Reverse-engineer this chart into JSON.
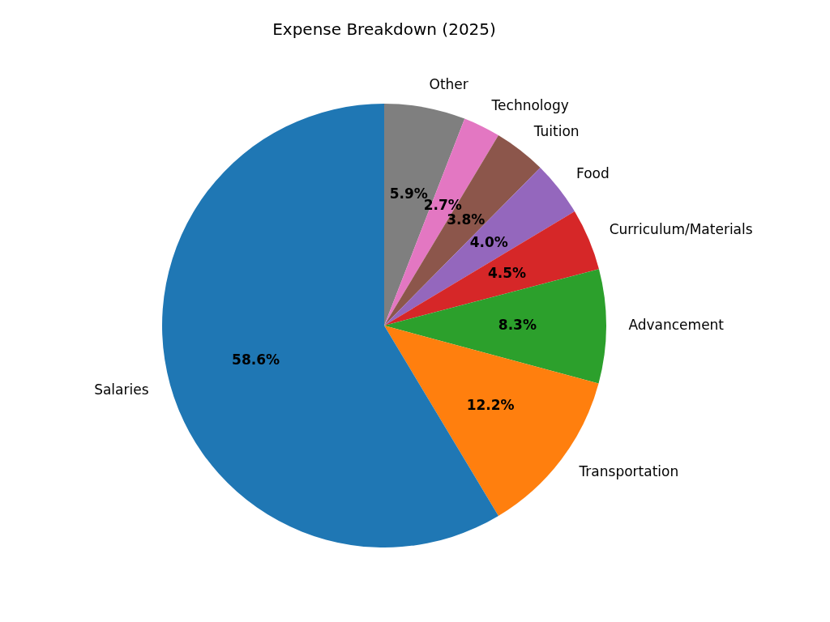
{
  "chart_data": {
    "type": "pie",
    "title": "Expense Breakdown (2025)",
    "categories": [
      "Other",
      "Technology",
      "Tuition",
      "Food",
      "Curriculum/Materials",
      "Advancement",
      "Transportation",
      "Salaries"
    ],
    "values": [
      5.9,
      2.7,
      3.8,
      4.0,
      4.5,
      8.3,
      12.2,
      58.6
    ],
    "colors": [
      "#7f7f7f",
      "#e377c2",
      "#8c564b",
      "#9467bd",
      "#d62728",
      "#2ca02c",
      "#ff7f0e",
      "#1f77b4"
    ],
    "value_labels": [
      "5.9%",
      "2.7%",
      "3.8%",
      "4.0%",
      "4.5%",
      "8.3%",
      "12.2%",
      "58.6%"
    ],
    "legend": false
  }
}
